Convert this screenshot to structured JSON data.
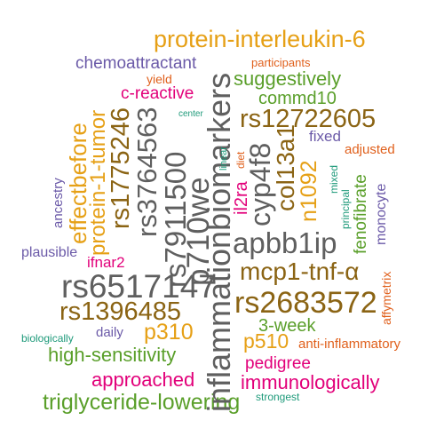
{
  "palette": {
    "gray": "#5f5f5f",
    "orange": "#e6a016",
    "brown": "#8b6414",
    "green": "#5a9f2a",
    "magenta": "#e2007a",
    "purple": "#6b5aa8",
    "teal": "#1e9a7a",
    "red_orange": "#e0601c"
  },
  "words": {
    "w01": "protein-interleukin-6",
    "w02": "chemoattractant",
    "w03": "participants",
    "w04": "yield",
    "w05": "suggestively",
    "w06": "c-reactive",
    "w07": "commd10",
    "w08": "center",
    "w09": "rs12722605",
    "w10": "fixed",
    "w11": "adjusted",
    "w12": "rs1775246",
    "w13": "rs3764563",
    "w14": "rs7911500",
    "w15": "p710we",
    "w16": "inflammationbiomarkers",
    "w17": "cyp4f8",
    "w18": "col13a1",
    "w19": "n1092",
    "w20": "effectbefore",
    "w21": "protein-1-tumor",
    "w22": "ancestry",
    "w23": "linear",
    "w24": "diet",
    "w25": "il2ra",
    "w26": "mixed",
    "w27": "principal",
    "w28": "fenofibrate",
    "w29": "monocyte",
    "w30": "apbb1ip",
    "w31": "plausible",
    "w32": "ifnar2",
    "w33": "mcp1-tnf-α",
    "w34": "rs6517147",
    "w35": "affymetrix",
    "w36": "rs2683572",
    "w37": "rs1396485",
    "w38": "3-week",
    "w39": "biologically",
    "w40": "daily",
    "w41": "p310",
    "w42": "p510",
    "w43": "anti-inflammatory",
    "w44": "high-sensitivity",
    "w45": "pedigree",
    "w46": "approached",
    "w47": "immunologically",
    "w48": "strongest",
    "w49": "triglyceride-lowering"
  }
}
